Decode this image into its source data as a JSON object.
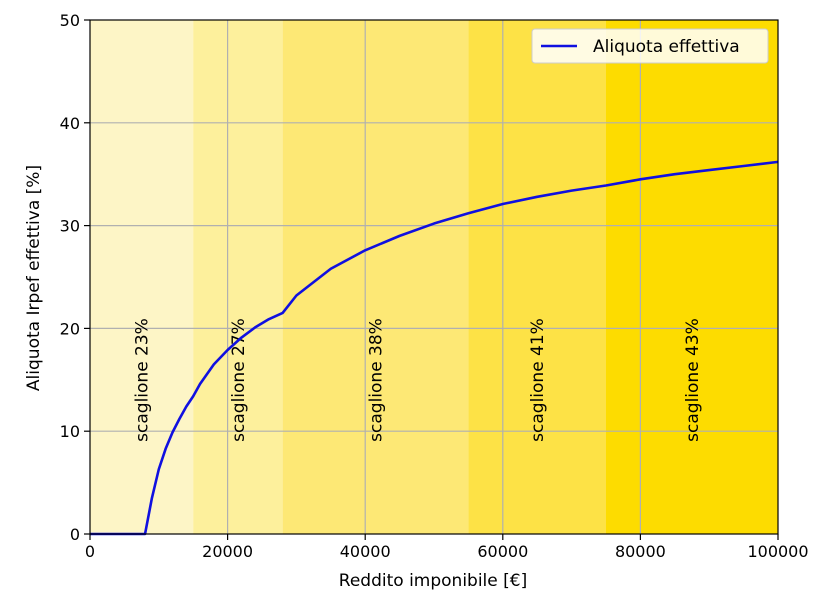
{
  "chart_data": {
    "type": "line",
    "title": "",
    "xlabel": "Reddito imponibile [€]",
    "ylabel": "Aliquota Irpef effettiva [%]",
    "xlim": [
      0,
      100000
    ],
    "ylim": [
      0,
      50
    ],
    "xticks": [
      0,
      20000,
      40000,
      60000,
      80000,
      100000
    ],
    "yticks": [
      0,
      10,
      20,
      30,
      40,
      50
    ],
    "xtick_labels": [
      "0",
      "20000",
      "40000",
      "60000",
      "80000",
      "100000"
    ],
    "ytick_labels": [
      "0",
      "10",
      "20",
      "30",
      "40",
      "50"
    ],
    "grid": true,
    "legend_position": "top-right",
    "bands": [
      {
        "label": "scaglione 23%",
        "from": 0,
        "to": 15000,
        "color": "#fdf5c6"
      },
      {
        "label": "scaglione 27%",
        "from": 15000,
        "to": 28000,
        "color": "#fdf09c"
      },
      {
        "label": "scaglione 38%",
        "from": 28000,
        "to": 55000,
        "color": "#fde875"
      },
      {
        "label": "scaglione 41%",
        "from": 55000,
        "to": 75000,
        "color": "#fde246"
      },
      {
        "label": "scaglione 43%",
        "from": 75000,
        "to": 100000,
        "color": "#fddc00"
      }
    ],
    "series": [
      {
        "name": "Aliquota effettiva",
        "color": "#1010e0",
        "x": [
          0,
          8000,
          9000,
          10000,
          11000,
          12000,
          13000,
          14000,
          15000,
          16000,
          18000,
          20000,
          22000,
          24000,
          26000,
          28000,
          30000,
          35000,
          40000,
          45000,
          50000,
          55000,
          60000,
          65000,
          70000,
          75000,
          80000,
          85000,
          90000,
          95000,
          100000
        ],
        "y": [
          0,
          0,
          3.5,
          6.3,
          8.3,
          9.9,
          11.2,
          12.4,
          13.4,
          14.6,
          16.5,
          17.9,
          19.1,
          20.1,
          20.9,
          21.5,
          23.2,
          25.8,
          27.6,
          29.0,
          30.2,
          31.2,
          32.1,
          32.8,
          33.4,
          33.9,
          34.5,
          35.0,
          35.4,
          35.8,
          36.2
        ]
      }
    ]
  }
}
